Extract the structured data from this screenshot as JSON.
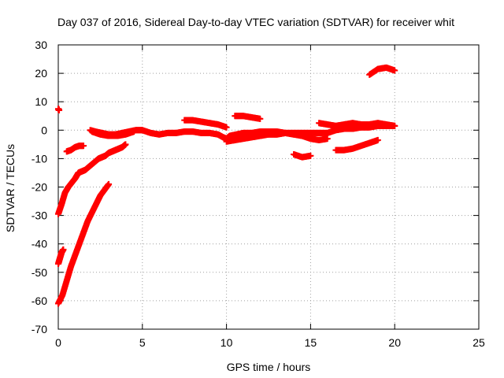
{
  "chart_data": {
    "type": "scatter",
    "title": "Day 037 of 2016, Sidereal Day-to-day VTEC variation (SDTVAR) for receiver whit",
    "xlabel": "GPS time / hours",
    "ylabel": "SDTVAR / TECUs",
    "xlim": [
      0,
      25
    ],
    "ylim": [
      -70,
      30
    ],
    "x_ticks": [
      0,
      5,
      10,
      15,
      20,
      25
    ],
    "y_ticks": [
      -70,
      -60,
      -50,
      -40,
      -30,
      -20,
      -10,
      0,
      10,
      20,
      30
    ],
    "grid": true,
    "legend": "none",
    "marker": "plus",
    "color": "#ff0000",
    "series": [
      {
        "x": [
          0.0,
          0.05
        ],
        "y": [
          7.5,
          7.0
        ]
      },
      {
        "x": [
          0.0,
          0.25,
          0.5,
          0.75,
          1.0,
          1.25,
          1.5,
          1.75,
          2.0,
          2.25,
          2.5,
          2.75,
          3.0
        ],
        "y": [
          -61,
          -58,
          -53,
          -48,
          -44,
          -40,
          -36,
          -32,
          -29,
          -26,
          -23,
          -21,
          -19
        ]
      },
      {
        "x": [
          0.0,
          0.1,
          0.2,
          0.3
        ],
        "y": [
          -47,
          -45,
          -43,
          -42
        ]
      },
      {
        "x": [
          0.0,
          0.2,
          0.4,
          0.6,
          0.8,
          1.0,
          1.2,
          1.4,
          1.6,
          1.8,
          2.0,
          2.2,
          2.4,
          2.6,
          2.8,
          3.0,
          3.2,
          3.4,
          3.6,
          3.8,
          4.0
        ],
        "y": [
          -29.5,
          -26,
          -22,
          -20,
          -18.5,
          -17,
          -15,
          -14.5,
          -14,
          -13,
          -12,
          -11,
          -10,
          -9.5,
          -9,
          -8,
          -7.5,
          -7,
          -6.5,
          -6,
          -5
        ]
      },
      {
        "x": [
          0.5,
          0.75,
          1.0,
          1.25,
          1.5
        ],
        "y": [
          -7.5,
          -7,
          -6,
          -5.5,
          -5.5
        ]
      },
      {
        "x": [
          1.9,
          2.2,
          2.6,
          3.0,
          3.4,
          3.8,
          4.2,
          4.6,
          5.0,
          5.5,
          6.0,
          6.5,
          7.0,
          7.5,
          8.0,
          8.5,
          9.0,
          9.5,
          9.8,
          10.0,
          10.2,
          10.6,
          11.0,
          11.5,
          12.0,
          12.5,
          13.0,
          13.5,
          14.0,
          14.5,
          15.0,
          15.5,
          16.0,
          16.5,
          17.0,
          17.5,
          18.0,
          18.5,
          19.0,
          19.5,
          20.0
        ],
        "y": [
          0,
          -0.5,
          -1,
          -1.5,
          -1.5,
          -1,
          -0.5,
          0,
          0,
          -1,
          -1.5,
          -1,
          -1,
          -0.5,
          -0.5,
          -1,
          -1,
          -1.5,
          -2.5,
          -3,
          -2,
          -1.5,
          -1,
          -1,
          -0.5,
          -0.5,
          -0.5,
          -1,
          -1,
          -1,
          -1,
          -1,
          -1,
          0,
          0.5,
          0.5,
          1,
          1,
          1.5,
          1.5,
          1.5
        ]
      },
      {
        "x": [
          2.0,
          2.5,
          3.0,
          3.5,
          4.0,
          4.5
        ],
        "y": [
          -0.5,
          -1.5,
          -2,
          -2,
          -1.5,
          -0.5
        ]
      },
      {
        "x": [
          7.5,
          8.0,
          8.5,
          9.0,
          9.5,
          10.0
        ],
        "y": [
          3.5,
          3.5,
          3,
          2.5,
          2,
          1
        ]
      },
      {
        "x": [
          10.5,
          11.0,
          11.5,
          12.0
        ],
        "y": [
          5,
          5,
          4.5,
          4
        ]
      },
      {
        "x": [
          10.0,
          10.5,
          11.0,
          11.5,
          12.0,
          12.5,
          13.0,
          13.5,
          14.0,
          14.5,
          15.0,
          15.5,
          16.0
        ],
        "y": [
          -4,
          -3.5,
          -3,
          -2.5,
          -2,
          -1.5,
          -1.5,
          -1,
          -1.5,
          -2,
          -3,
          -3.5,
          -3
        ]
      },
      {
        "x": [
          14.0,
          14.5,
          15.0
        ],
        "y": [
          -8.5,
          -9.5,
          -9
        ]
      },
      {
        "x": [
          15.5,
          16.0,
          16.5,
          17.0,
          17.5,
          18.0,
          18.5,
          19.0,
          19.5,
          20.0
        ],
        "y": [
          2.5,
          2,
          1.5,
          2,
          2.5,
          2,
          2,
          2.5,
          2,
          1.5
        ]
      },
      {
        "x": [
          16.5,
          17.0,
          17.5,
          18.0,
          18.5,
          19.0
        ],
        "y": [
          -7,
          -7,
          -6.5,
          -5.5,
          -4.5,
          -3.5
        ]
      },
      {
        "x": [
          18.5,
          19.0,
          19.5,
          20.0
        ],
        "y": [
          19.5,
          21.5,
          22,
          21
        ]
      }
    ]
  }
}
